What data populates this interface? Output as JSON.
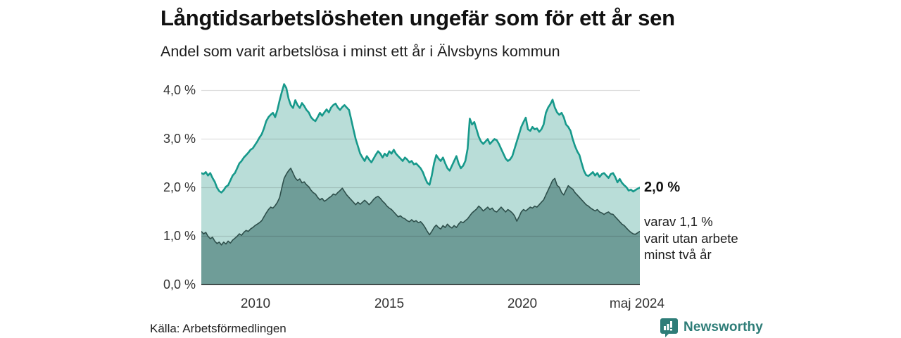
{
  "header": {
    "title": "Långtidsarbetslösheten ungefär som för ett år sen",
    "subtitle": "Andel som varit arbetslösa i minst ett år i Älvsbyns kommun"
  },
  "footer": {
    "source": "Källa: Arbetsförmedlingen",
    "brand": "Newsworthy"
  },
  "chart_data": {
    "type": "area",
    "title": "Långtidsarbetslösheten ungefär som för ett år sen",
    "subtitle": "Andel som varit arbetslösa i minst ett år i Älvsbyns kommun",
    "x_start": "2008-01",
    "x_end": "2024-05",
    "x_tick_labels": [
      "2010",
      "2015",
      "2020",
      "maj 2024"
    ],
    "y_tick_labels": [
      "4,0 %",
      "3,0 %",
      "2,0 %",
      "1,0 %",
      "0,0 %"
    ],
    "y_ticks": [
      4.0,
      3.0,
      2.0,
      1.0,
      0.0
    ],
    "ylim": [
      0,
      4.28
    ],
    "grid": "horizontal",
    "legend_position": "none",
    "colors": {
      "line_1yr": "#17998b",
      "fill_1yr": "#b9ddd8",
      "line_2yr": "#2e4f4b",
      "fill_2yr": "#6f9d98",
      "gridline": "rgba(0,0,0,0.13)",
      "baseline": "#333333",
      "brand_teal": "#2e7d78"
    },
    "end_labels": {
      "primary": "2,0 %",
      "secondary_line1": "varav 1,1 %",
      "secondary_line2": "varit utan arbete",
      "secondary_line3": "minst två år"
    },
    "series": [
      {
        "name": "Andel arbetslösa minst ett år",
        "last_value_pct": 2.0,
        "values": [
          2.3,
          2.28,
          2.32,
          2.25,
          2.3,
          2.2,
          2.12,
          2.0,
          1.93,
          1.9,
          1.95,
          2.02,
          2.05,
          2.15,
          2.25,
          2.3,
          2.4,
          2.5,
          2.55,
          2.62,
          2.67,
          2.72,
          2.78,
          2.81,
          2.88,
          2.95,
          3.03,
          3.1,
          3.22,
          3.37,
          3.45,
          3.5,
          3.54,
          3.45,
          3.6,
          3.8,
          3.97,
          4.13,
          4.05,
          3.83,
          3.7,
          3.64,
          3.8,
          3.7,
          3.64,
          3.74,
          3.68,
          3.6,
          3.55,
          3.45,
          3.4,
          3.37,
          3.45,
          3.54,
          3.48,
          3.55,
          3.61,
          3.55,
          3.65,
          3.7,
          3.73,
          3.65,
          3.6,
          3.66,
          3.7,
          3.65,
          3.6,
          3.4,
          3.2,
          3.0,
          2.85,
          2.7,
          2.62,
          2.55,
          2.65,
          2.58,
          2.52,
          2.6,
          2.68,
          2.75,
          2.7,
          2.62,
          2.7,
          2.65,
          2.75,
          2.7,
          2.78,
          2.7,
          2.65,
          2.6,
          2.55,
          2.62,
          2.58,
          2.52,
          2.55,
          2.48,
          2.5,
          2.45,
          2.4,
          2.32,
          2.2,
          2.1,
          2.06,
          2.25,
          2.5,
          2.67,
          2.6,
          2.55,
          2.62,
          2.5,
          2.4,
          2.35,
          2.45,
          2.55,
          2.65,
          2.5,
          2.4,
          2.45,
          2.55,
          2.8,
          3.42,
          3.3,
          3.35,
          3.2,
          3.05,
          2.95,
          2.9,
          2.95,
          3.0,
          2.9,
          2.95,
          3.0,
          2.98,
          2.9,
          2.8,
          2.7,
          2.6,
          2.55,
          2.58,
          2.65,
          2.8,
          2.95,
          3.1,
          3.25,
          3.35,
          3.44,
          3.2,
          3.17,
          3.25,
          3.2,
          3.22,
          3.15,
          3.2,
          3.3,
          3.54,
          3.65,
          3.72,
          3.81,
          3.65,
          3.55,
          3.5,
          3.54,
          3.45,
          3.3,
          3.25,
          3.17,
          3.0,
          2.86,
          2.75,
          2.67,
          2.5,
          2.35,
          2.26,
          2.24,
          2.28,
          2.32,
          2.25,
          2.3,
          2.22,
          2.28,
          2.3,
          2.25,
          2.2,
          2.28,
          2.3,
          2.22,
          2.11,
          2.18,
          2.1,
          2.05,
          2.01,
          1.94,
          1.96,
          1.92,
          1.95,
          1.98,
          2.0
        ]
      },
      {
        "name": "Varav utan arbete minst två år",
        "last_value_pct": 1.1,
        "values": [
          1.1,
          1.05,
          1.08,
          1.0,
          0.95,
          0.98,
          0.9,
          0.85,
          0.88,
          0.82,
          0.88,
          0.84,
          0.9,
          0.86,
          0.92,
          0.96,
          1.0,
          1.05,
          1.02,
          1.08,
          1.12,
          1.1,
          1.15,
          1.18,
          1.22,
          1.25,
          1.28,
          1.32,
          1.4,
          1.48,
          1.55,
          1.6,
          1.58,
          1.63,
          1.7,
          1.8,
          2.0,
          2.19,
          2.28,
          2.35,
          2.4,
          2.3,
          2.2,
          2.15,
          2.18,
          2.1,
          2.12,
          2.06,
          2.02,
          1.95,
          1.9,
          1.87,
          1.8,
          1.75,
          1.78,
          1.72,
          1.75,
          1.79,
          1.82,
          1.87,
          1.85,
          1.9,
          1.94,
          1.99,
          1.92,
          1.85,
          1.8,
          1.75,
          1.7,
          1.65,
          1.7,
          1.66,
          1.7,
          1.74,
          1.7,
          1.65,
          1.7,
          1.76,
          1.8,
          1.82,
          1.78,
          1.72,
          1.68,
          1.62,
          1.58,
          1.55,
          1.5,
          1.45,
          1.4,
          1.42,
          1.38,
          1.36,
          1.32,
          1.3,
          1.34,
          1.3,
          1.32,
          1.28,
          1.3,
          1.25,
          1.18,
          1.1,
          1.03,
          1.1,
          1.18,
          1.23,
          1.18,
          1.15,
          1.22,
          1.18,
          1.25,
          1.2,
          1.17,
          1.22,
          1.18,
          1.25,
          1.3,
          1.28,
          1.32,
          1.36,
          1.42,
          1.48,
          1.52,
          1.56,
          1.62,
          1.58,
          1.52,
          1.56,
          1.6,
          1.55,
          1.58,
          1.52,
          1.5,
          1.55,
          1.6,
          1.55,
          1.5,
          1.55,
          1.52,
          1.48,
          1.42,
          1.31,
          1.4,
          1.5,
          1.55,
          1.52,
          1.56,
          1.6,
          1.58,
          1.62,
          1.6,
          1.65,
          1.7,
          1.75,
          1.85,
          1.95,
          2.05,
          2.15,
          2.19,
          2.05,
          2.01,
          1.9,
          1.85,
          1.95,
          2.04,
          2.0,
          1.97,
          1.9,
          1.85,
          1.8,
          1.75,
          1.7,
          1.65,
          1.62,
          1.58,
          1.55,
          1.52,
          1.55,
          1.5,
          1.48,
          1.45,
          1.48,
          1.5,
          1.46,
          1.45,
          1.4,
          1.35,
          1.3,
          1.25,
          1.22,
          1.17,
          1.12,
          1.08,
          1.05,
          1.04,
          1.07,
          1.1
        ]
      }
    ]
  }
}
